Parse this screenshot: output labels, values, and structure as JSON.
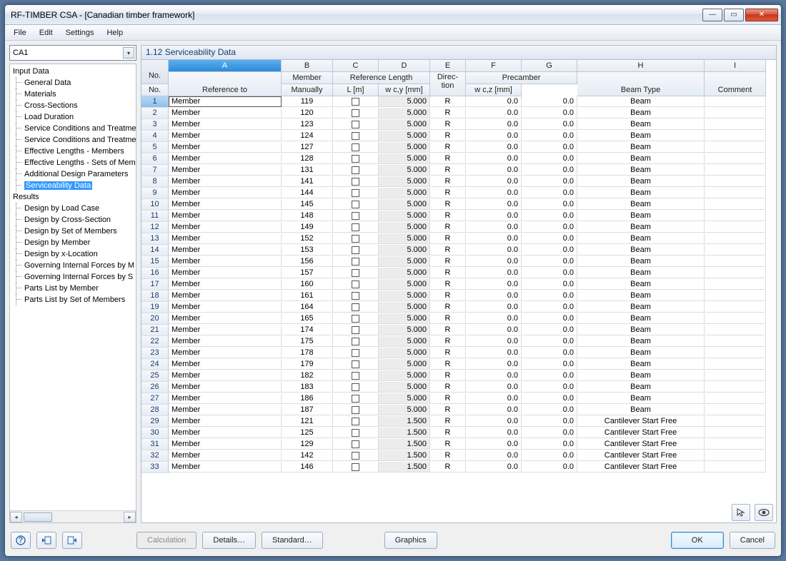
{
  "window": {
    "title": "RF-TIMBER CSA - [Canadian timber framework]"
  },
  "menu": [
    "File",
    "Edit",
    "Settings",
    "Help"
  ],
  "combo": {
    "value": "CA1"
  },
  "tree": {
    "input_label": "Input Data",
    "input_items": [
      "General Data",
      "Materials",
      "Cross-Sections",
      "Load Duration",
      "Service Conditions and Treatme",
      "Service Conditions and Treatme",
      "Effective Lengths - Members",
      "Effective Lengths - Sets of Mem",
      "Additional Design Parameters",
      "Serviceability Data"
    ],
    "input_selected_index": 9,
    "results_label": "Results",
    "results_items": [
      "Design by Load Case",
      "Design by Cross-Section",
      "Design by Set of Members",
      "Design by Member",
      "Design by x-Location",
      "Governing Internal Forces by M",
      "Governing Internal Forces by S",
      "Parts List by Member",
      "Parts List by Set of Members"
    ]
  },
  "panel": {
    "title": "1.12  Serviceability Data"
  },
  "grid": {
    "col_letters": [
      "A",
      "B",
      "C",
      "D",
      "E",
      "F",
      "G",
      "H",
      "I"
    ],
    "group_headers": {
      "no": "No.",
      "ref_to": "Reference to",
      "member_no": "No.",
      "member_group": "Member",
      "ref_len_group": "Reference Length",
      "manually": "Manually",
      "L": "L [m]",
      "direction": "Direc-\ntion",
      "precamber_group": "Precamber",
      "wcy": "w c,y [mm]",
      "wcz": "w c,z [mm]",
      "beam_type": "Beam Type",
      "comment": "Comment"
    },
    "rows": [
      {
        "n": 1,
        "ref": "Member",
        "no": 119,
        "L": "5.000",
        "dir": "R",
        "wcy": "0.0",
        "wcz": "0.0",
        "bt": "Beam"
      },
      {
        "n": 2,
        "ref": "Member",
        "no": 120,
        "L": "5.000",
        "dir": "R",
        "wcy": "0.0",
        "wcz": "0.0",
        "bt": "Beam"
      },
      {
        "n": 3,
        "ref": "Member",
        "no": 123,
        "L": "5.000",
        "dir": "R",
        "wcy": "0.0",
        "wcz": "0.0",
        "bt": "Beam"
      },
      {
        "n": 4,
        "ref": "Member",
        "no": 124,
        "L": "5.000",
        "dir": "R",
        "wcy": "0.0",
        "wcz": "0.0",
        "bt": "Beam"
      },
      {
        "n": 5,
        "ref": "Member",
        "no": 127,
        "L": "5.000",
        "dir": "R",
        "wcy": "0.0",
        "wcz": "0.0",
        "bt": "Beam"
      },
      {
        "n": 6,
        "ref": "Member",
        "no": 128,
        "L": "5.000",
        "dir": "R",
        "wcy": "0.0",
        "wcz": "0.0",
        "bt": "Beam"
      },
      {
        "n": 7,
        "ref": "Member",
        "no": 131,
        "L": "5.000",
        "dir": "R",
        "wcy": "0.0",
        "wcz": "0.0",
        "bt": "Beam"
      },
      {
        "n": 8,
        "ref": "Member",
        "no": 141,
        "L": "5.000",
        "dir": "R",
        "wcy": "0.0",
        "wcz": "0.0",
        "bt": "Beam"
      },
      {
        "n": 9,
        "ref": "Member",
        "no": 144,
        "L": "5.000",
        "dir": "R",
        "wcy": "0.0",
        "wcz": "0.0",
        "bt": "Beam"
      },
      {
        "n": 10,
        "ref": "Member",
        "no": 145,
        "L": "5.000",
        "dir": "R",
        "wcy": "0.0",
        "wcz": "0.0",
        "bt": "Beam"
      },
      {
        "n": 11,
        "ref": "Member",
        "no": 148,
        "L": "5.000",
        "dir": "R",
        "wcy": "0.0",
        "wcz": "0.0",
        "bt": "Beam"
      },
      {
        "n": 12,
        "ref": "Member",
        "no": 149,
        "L": "5.000",
        "dir": "R",
        "wcy": "0.0",
        "wcz": "0.0",
        "bt": "Beam"
      },
      {
        "n": 13,
        "ref": "Member",
        "no": 152,
        "L": "5.000",
        "dir": "R",
        "wcy": "0.0",
        "wcz": "0.0",
        "bt": "Beam"
      },
      {
        "n": 14,
        "ref": "Member",
        "no": 153,
        "L": "5.000",
        "dir": "R",
        "wcy": "0.0",
        "wcz": "0.0",
        "bt": "Beam"
      },
      {
        "n": 15,
        "ref": "Member",
        "no": 156,
        "L": "5.000",
        "dir": "R",
        "wcy": "0.0",
        "wcz": "0.0",
        "bt": "Beam"
      },
      {
        "n": 16,
        "ref": "Member",
        "no": 157,
        "L": "5.000",
        "dir": "R",
        "wcy": "0.0",
        "wcz": "0.0",
        "bt": "Beam"
      },
      {
        "n": 17,
        "ref": "Member",
        "no": 160,
        "L": "5.000",
        "dir": "R",
        "wcy": "0.0",
        "wcz": "0.0",
        "bt": "Beam"
      },
      {
        "n": 18,
        "ref": "Member",
        "no": 161,
        "L": "5.000",
        "dir": "R",
        "wcy": "0.0",
        "wcz": "0.0",
        "bt": "Beam"
      },
      {
        "n": 19,
        "ref": "Member",
        "no": 164,
        "L": "5.000",
        "dir": "R",
        "wcy": "0.0",
        "wcz": "0.0",
        "bt": "Beam"
      },
      {
        "n": 20,
        "ref": "Member",
        "no": 165,
        "L": "5.000",
        "dir": "R",
        "wcy": "0.0",
        "wcz": "0.0",
        "bt": "Beam"
      },
      {
        "n": 21,
        "ref": "Member",
        "no": 174,
        "L": "5.000",
        "dir": "R",
        "wcy": "0.0",
        "wcz": "0.0",
        "bt": "Beam"
      },
      {
        "n": 22,
        "ref": "Member",
        "no": 175,
        "L": "5.000",
        "dir": "R",
        "wcy": "0.0",
        "wcz": "0.0",
        "bt": "Beam"
      },
      {
        "n": 23,
        "ref": "Member",
        "no": 178,
        "L": "5.000",
        "dir": "R",
        "wcy": "0.0",
        "wcz": "0.0",
        "bt": "Beam"
      },
      {
        "n": 24,
        "ref": "Member",
        "no": 179,
        "L": "5.000",
        "dir": "R",
        "wcy": "0.0",
        "wcz": "0.0",
        "bt": "Beam"
      },
      {
        "n": 25,
        "ref": "Member",
        "no": 182,
        "L": "5.000",
        "dir": "R",
        "wcy": "0.0",
        "wcz": "0.0",
        "bt": "Beam"
      },
      {
        "n": 26,
        "ref": "Member",
        "no": 183,
        "L": "5.000",
        "dir": "R",
        "wcy": "0.0",
        "wcz": "0.0",
        "bt": "Beam"
      },
      {
        "n": 27,
        "ref": "Member",
        "no": 186,
        "L": "5.000",
        "dir": "R",
        "wcy": "0.0",
        "wcz": "0.0",
        "bt": "Beam"
      },
      {
        "n": 28,
        "ref": "Member",
        "no": 187,
        "L": "5.000",
        "dir": "R",
        "wcy": "0.0",
        "wcz": "0.0",
        "bt": "Beam"
      },
      {
        "n": 29,
        "ref": "Member",
        "no": 121,
        "L": "1.500",
        "dir": "R",
        "wcy": "0.0",
        "wcz": "0.0",
        "bt": "Cantilever Start Free"
      },
      {
        "n": 30,
        "ref": "Member",
        "no": 125,
        "L": "1.500",
        "dir": "R",
        "wcy": "0.0",
        "wcz": "0.0",
        "bt": "Cantilever Start Free"
      },
      {
        "n": 31,
        "ref": "Member",
        "no": 129,
        "L": "1.500",
        "dir": "R",
        "wcy": "0.0",
        "wcz": "0.0",
        "bt": "Cantilever Start Free"
      },
      {
        "n": 32,
        "ref": "Member",
        "no": 142,
        "L": "1.500",
        "dir": "R",
        "wcy": "0.0",
        "wcz": "0.0",
        "bt": "Cantilever Start Free"
      },
      {
        "n": 33,
        "ref": "Member",
        "no": 146,
        "L": "1.500",
        "dir": "R",
        "wcy": "0.0",
        "wcz": "0.0",
        "bt": "Cantilever Start Free"
      }
    ]
  },
  "buttons": {
    "calculation": "Calculation",
    "details": "Details…",
    "standard": "Standard…",
    "graphics": "Graphics",
    "ok": "OK",
    "cancel": "Cancel"
  },
  "colors": {
    "selection": "#3399ff",
    "header_grad_top": "#f6f8fb",
    "header_grad_bot": "#e6ecf4",
    "col_a_top": "#5ab0ee",
    "col_a_bot": "#2d8ad8",
    "border": "#b0bccc",
    "shade": "#ececec"
  }
}
